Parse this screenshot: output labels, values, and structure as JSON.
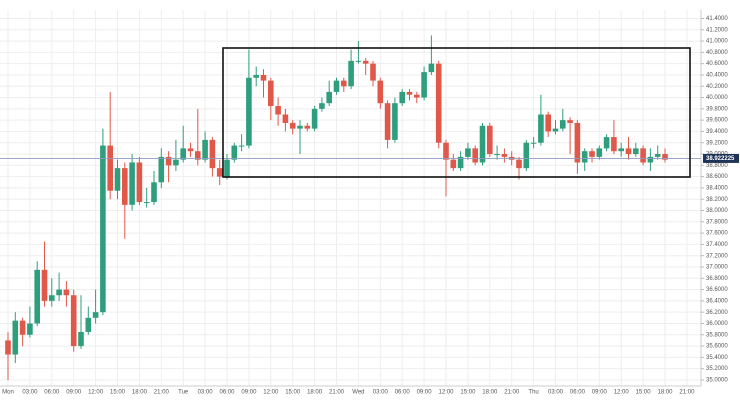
{
  "chart_data": {
    "type": "candlestick",
    "categories": [
      "Mon",
      null,
      null,
      "03:00",
      null,
      null,
      "06:00",
      null,
      null,
      "09:00",
      null,
      null,
      "12:00",
      null,
      null,
      "15:00",
      null,
      null,
      "18:00",
      null,
      null,
      "21:00",
      null,
      null,
      "Tue",
      null,
      null,
      "03:00",
      null,
      null,
      "06:00",
      null,
      null,
      "09:00",
      null,
      null,
      "12:00",
      null,
      null,
      "15:00",
      null,
      null,
      "18:00",
      null,
      null,
      "21:00",
      null,
      null,
      "Wed",
      null,
      null,
      "03:00",
      null,
      null,
      "06:00",
      null,
      null,
      "09:00",
      null,
      null,
      "12:00",
      null,
      null,
      "15:00",
      null,
      null,
      "18:00",
      null,
      null,
      "21:00",
      null,
      null,
      "Thu",
      null,
      null,
      "03:00",
      null,
      null,
      "06:00",
      null,
      null,
      "09:00",
      null,
      null,
      "12:00",
      null,
      null,
      "15:00",
      null,
      null,
      "18:00",
      null,
      null,
      "21:00",
      null,
      null
    ],
    "open": [
      35.7,
      35.45,
      36.05,
      35.8,
      36.0,
      36.95,
      36.4,
      36.5,
      36.6,
      36.5,
      35.6,
      35.85,
      36.1,
      36.2,
      39.15,
      38.35,
      38.75,
      38.1,
      38.85,
      38.15,
      38.15,
      38.5,
      38.95,
      38.8,
      38.9,
      39.1,
      39.05,
      38.9,
      39.25,
      38.75,
      38.6,
      38.9,
      39.15,
      39.15,
      40.35,
      40.4,
      40.3,
      39.85,
      39.7,
      39.55,
      39.45,
      39.5,
      39.45,
      39.8,
      39.9,
      40.1,
      40.3,
      40.2,
      40.65,
      40.65,
      40.6,
      40.3,
      39.9,
      39.25,
      39.9,
      40.1,
      40.05,
      40.0,
      40.45,
      40.6,
      39.2,
      38.9,
      38.75,
      38.95,
      39.1,
      38.85,
      39.5,
      39.0,
      39.0,
      38.95,
      38.9,
      38.75,
      39.2,
      39.2,
      39.7,
      39.4,
      39.45,
      39.6,
      39.55,
      38.85,
      39.05,
      38.95,
      39.1,
      39.3,
      39.05,
      39.1,
      39.0,
      39.1,
      38.85,
      38.95,
      39.0,
      null,
      null,
      null,
      null,
      null
    ],
    "high": [
      35.85,
      36.2,
      36.1,
      36.3,
      37.1,
      37.45,
      36.8,
      36.9,
      36.75,
      36.6,
      36.5,
      36.3,
      36.6,
      39.45,
      40.1,
      38.9,
      38.85,
      39.0,
      38.95,
      38.4,
      38.7,
      39.1,
      39.05,
      39.25,
      39.5,
      39.2,
      39.8,
      39.4,
      39.3,
      38.9,
      39.0,
      39.2,
      39.35,
      40.85,
      40.55,
      40.5,
      40.35,
      40.0,
      39.8,
      39.6,
      39.6,
      39.55,
      39.85,
      40.0,
      40.3,
      40.35,
      40.35,
      40.85,
      41.0,
      40.7,
      40.65,
      40.35,
      39.95,
      40.0,
      40.15,
      40.15,
      40.1,
      40.55,
      41.1,
      40.65,
      39.25,
      39.0,
      39.05,
      39.2,
      39.15,
      39.55,
      39.55,
      39.15,
      39.1,
      39.05,
      38.95,
      39.25,
      39.3,
      40.05,
      39.75,
      39.6,
      39.8,
      39.65,
      39.6,
      39.1,
      39.1,
      39.15,
      39.35,
      39.6,
      39.2,
      39.3,
      39.2,
      39.15,
      39.1,
      39.15,
      39.1,
      null,
      null,
      null,
      null,
      null
    ],
    "low": [
      35.0,
      35.3,
      35.6,
      35.75,
      35.95,
      36.3,
      36.3,
      36.4,
      36.3,
      35.5,
      35.55,
      35.8,
      36.0,
      36.15,
      38.2,
      38.2,
      37.5,
      38.0,
      38.1,
      38.05,
      38.1,
      38.4,
      38.5,
      38.7,
      38.85,
      38.95,
      38.8,
      38.85,
      38.6,
      38.45,
      38.55,
      38.85,
      39.05,
      39.1,
      40.2,
      40.0,
      39.6,
      39.5,
      39.4,
      39.35,
      39.0,
      39.4,
      39.4,
      39.75,
      39.85,
      40.05,
      40.1,
      40.15,
      40.6,
      40.4,
      40.2,
      39.8,
      39.1,
      39.2,
      39.85,
      39.95,
      39.9,
      39.95,
      40.4,
      39.1,
      38.25,
      38.7,
      38.7,
      38.9,
      38.8,
      38.8,
      38.95,
      38.9,
      38.85,
      38.8,
      38.55,
      38.7,
      39.1,
      39.15,
      39.3,
      39.35,
      39.4,
      39.0,
      38.65,
      38.7,
      38.85,
      38.9,
      39.05,
      39.0,
      38.95,
      38.9,
      38.95,
      38.8,
      38.7,
      38.9,
      38.85,
      null,
      null,
      null,
      null,
      null
    ],
    "close": [
      35.45,
      36.05,
      35.8,
      36.0,
      36.95,
      36.4,
      36.5,
      36.6,
      36.5,
      35.6,
      35.85,
      36.1,
      36.2,
      39.15,
      38.35,
      38.75,
      38.1,
      38.85,
      38.15,
      38.15,
      38.5,
      38.95,
      38.8,
      38.9,
      39.1,
      39.05,
      38.9,
      39.25,
      38.75,
      38.6,
      38.9,
      39.15,
      39.15,
      40.35,
      40.4,
      40.3,
      39.85,
      39.7,
      39.55,
      39.45,
      39.5,
      39.45,
      39.8,
      39.9,
      40.1,
      40.3,
      40.2,
      40.65,
      40.65,
      40.6,
      40.3,
      39.9,
      39.25,
      39.9,
      40.1,
      40.05,
      40.0,
      40.45,
      40.6,
      39.2,
      38.9,
      38.75,
      38.95,
      39.1,
      38.85,
      39.5,
      39.0,
      39.0,
      38.95,
      38.9,
      38.75,
      39.2,
      39.2,
      39.7,
      39.4,
      39.45,
      39.6,
      39.55,
      38.85,
      39.05,
      38.95,
      39.1,
      39.3,
      39.05,
      39.1,
      39.0,
      39.1,
      38.85,
      38.95,
      39.0,
      38.9,
      null,
      null,
      null,
      null,
      null
    ],
    "up_color": "#2f9e7d",
    "down_color": "#e0584a",
    "ylim": [
      34.9,
      41.55
    ],
    "yticks": [
      {
        "value": 41.4,
        "label": "41.4000"
      },
      {
        "value": 41.2,
        "label": "41.2000"
      },
      {
        "value": 41.0,
        "label": "41.0000"
      },
      {
        "value": 40.8,
        "label": "40.8000"
      },
      {
        "value": 40.6,
        "label": "40.6000"
      },
      {
        "value": 40.4,
        "label": "40.4000"
      },
      {
        "value": 40.2,
        "label": "40.2000"
      },
      {
        "value": 40.0,
        "label": "40.0000"
      },
      {
        "value": 39.8,
        "label": "39.8000"
      },
      {
        "value": 39.6,
        "label": "39.6000"
      },
      {
        "value": 39.4,
        "label": "39.4000"
      },
      {
        "value": 39.2,
        "label": "39.2000"
      },
      {
        "value": 39.0,
        "label": "39.0000"
      },
      {
        "value": 38.8,
        "label": "38.8000"
      },
      {
        "value": 38.6,
        "label": "38.6000"
      },
      {
        "value": 38.4,
        "label": "38.4000"
      },
      {
        "value": 38.2,
        "label": "38.2000"
      },
      {
        "value": 38.0,
        "label": "38.0000"
      },
      {
        "value": 37.8,
        "label": "37.8000"
      },
      {
        "value": 37.6,
        "label": "37.6000"
      },
      {
        "value": 37.4,
        "label": "37.4000"
      },
      {
        "value": 37.2,
        "label": "37.2000"
      },
      {
        "value": 37.0,
        "label": "37.0000"
      },
      {
        "value": 36.8,
        "label": "36.8000"
      },
      {
        "value": 36.6,
        "label": "36.6000"
      },
      {
        "value": 36.4,
        "label": "36.4000"
      },
      {
        "value": 36.2,
        "label": "36.2000"
      },
      {
        "value": 36.0,
        "label": "36.0000"
      },
      {
        "value": 35.8,
        "label": "35.8000"
      },
      {
        "value": 35.6,
        "label": "35.6000"
      },
      {
        "value": 35.4,
        "label": "35.4000"
      },
      {
        "value": 35.2,
        "label": "35.2000"
      },
      {
        "value": 35.0,
        "label": "35.0000"
      }
    ],
    "grid": true,
    "current_price": 38.922225
  }
}
